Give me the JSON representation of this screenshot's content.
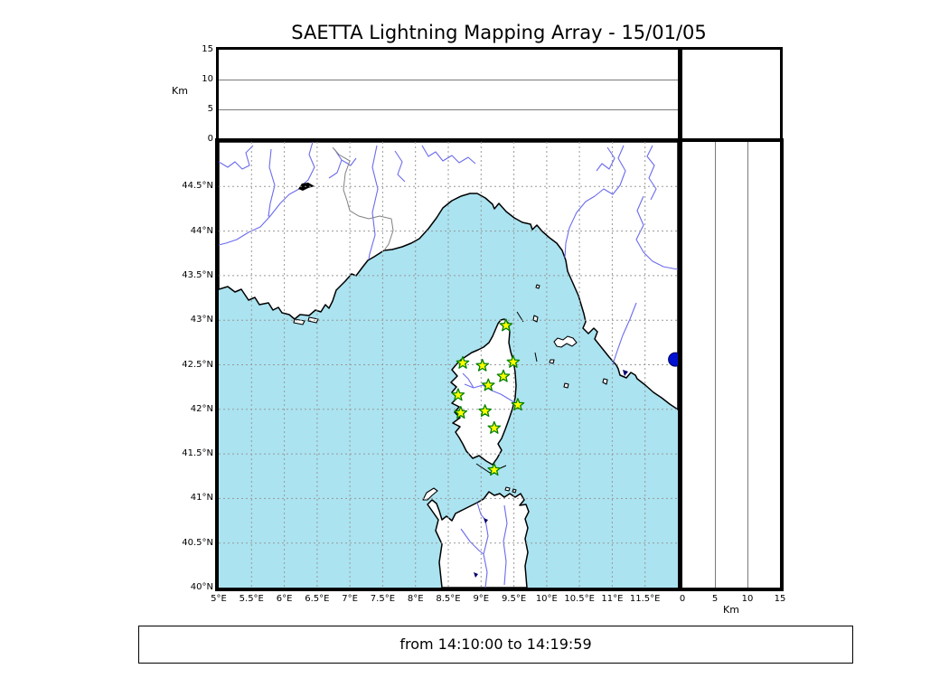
{
  "title": "SAETTA Lightning Mapping Array - 15/01/05",
  "time_range_label": "from 14:10:00 to 14:19:59",
  "altitude_axis": {
    "label": "Km",
    "max": 15,
    "top_panel_ticks": [
      {
        "label": "15",
        "value": 15
      },
      {
        "label": "10",
        "value": 10
      },
      {
        "label": "5",
        "value": 5
      },
      {
        "label": "0",
        "value": 0
      }
    ],
    "right_panel_ticks": [
      {
        "label": "0",
        "value": 0
      },
      {
        "label": "5",
        "value": 5
      },
      {
        "label": "10",
        "value": 10
      },
      {
        "label": "15",
        "value": 15
      }
    ],
    "gridline_values": [
      5,
      10
    ]
  },
  "map": {
    "lon_range": [
      5,
      12
    ],
    "lat_range": [
      40,
      45
    ],
    "grid_step_deg": 0.5,
    "lat_ticks": [
      {
        "label": "44.5°N",
        "value": 44.5
      },
      {
        "label": "44°N",
        "value": 44
      },
      {
        "label": "43.5°N",
        "value": 43.5
      },
      {
        "label": "43°N",
        "value": 43
      },
      {
        "label": "42.5°N",
        "value": 42.5
      },
      {
        "label": "42°N",
        "value": 42
      },
      {
        "label": "41.5°N",
        "value": 41.5
      },
      {
        "label": "41°N",
        "value": 41
      },
      {
        "label": "40.5°N",
        "value": 40.5
      },
      {
        "label": "40°N",
        "value": 40
      }
    ],
    "lon_ticks": [
      {
        "label": "5°E",
        "value": 5
      },
      {
        "label": "5.5°E",
        "value": 5.5
      },
      {
        "label": "6°E",
        "value": 6
      },
      {
        "label": "6.5°E",
        "value": 6.5
      },
      {
        "label": "7°E",
        "value": 7
      },
      {
        "label": "7.5°E",
        "value": 7.5
      },
      {
        "label": "8°E",
        "value": 8
      },
      {
        "label": "8.5°E",
        "value": 8.5
      },
      {
        "label": "9°E",
        "value": 9
      },
      {
        "label": "9.5°E",
        "value": 9.5
      },
      {
        "label": "10°E",
        "value": 10
      },
      {
        "label": "10.5°E",
        "value": 10.5
      },
      {
        "label": "11°E",
        "value": 11
      },
      {
        "label": "11.5°E",
        "value": 11.5
      }
    ]
  },
  "stations": [
    {
      "lon": 9.38,
      "lat": 42.94
    },
    {
      "lon": 8.72,
      "lat": 42.52
    },
    {
      "lon": 9.02,
      "lat": 42.49
    },
    {
      "lon": 9.49,
      "lat": 42.53
    },
    {
      "lon": 9.34,
      "lat": 42.37
    },
    {
      "lon": 9.11,
      "lat": 42.27
    },
    {
      "lon": 8.65,
      "lat": 42.16
    },
    {
      "lon": 9.56,
      "lat": 42.05
    },
    {
      "lon": 8.69,
      "lat": 41.96
    },
    {
      "lon": 9.06,
      "lat": 41.98
    },
    {
      "lon": 9.2,
      "lat": 41.79
    },
    {
      "lon": 9.2,
      "lat": 41.32
    }
  ],
  "lightning_source": {
    "lon": 11.96,
    "lat": 42.56
  },
  "colors": {
    "sea": "#abe3f0",
    "land": "#ffffff",
    "coastline": "#000000",
    "river": "#6b6bee",
    "gridline": "#999999",
    "country_border": "#808080",
    "lake_dark": "#00006e",
    "lake_black": "#000000",
    "station_fill": "#ffff00",
    "station_edge": "#008000",
    "source_dot_fill": "#0011d0",
    "source_dot_edge": "#000060",
    "panel_gridline": "#7a7a7a"
  }
}
